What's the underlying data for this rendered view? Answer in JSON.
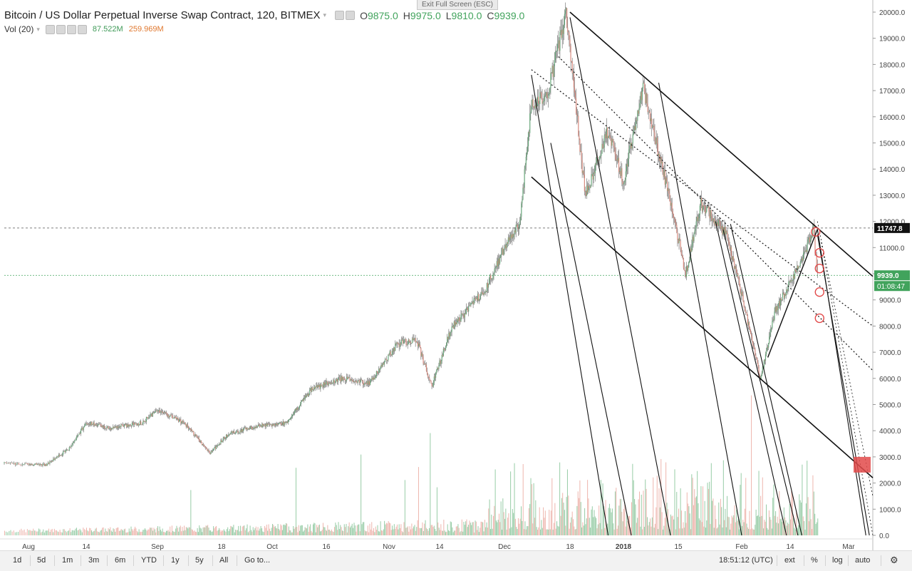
{
  "header": {
    "title": "Bitcoin / US Dollar Perpetual Inverse Swap Contract, 120, BITMEX",
    "ohlc": [
      {
        "k": "O",
        "v": "9875.0"
      },
      {
        "k": "H",
        "v": "9975.0"
      },
      {
        "k": "L",
        "v": "9810.0"
      },
      {
        "k": "C",
        "v": "9939.0"
      }
    ],
    "volume_label": "Vol (20)",
    "volume_value": "87.522M",
    "volume_ma": "259.969M",
    "exit_fullscreen": "Exit Full Screen (ESC)"
  },
  "colors": {
    "up": "#41a35c",
    "down": "#e0786a",
    "trendline": "#111111",
    "marker": "#e24a4a",
    "price_line": "#41a35c",
    "axis_text": "#444444"
  },
  "chart_data": {
    "type": "candlestick",
    "interval": "120",
    "ylim": [
      0,
      20000
    ],
    "yticks": [
      "20000.0",
      "19000.0",
      "18000.0",
      "17000.0",
      "16000.0",
      "15000.0",
      "14000.0",
      "13000.0",
      "12000.0",
      "11000.0",
      "10000.0",
      "9000.0",
      "8000.0",
      "7000.0",
      "6000.0",
      "5000.0",
      "4000.0",
      "3000.0",
      "2000.0",
      "1000.0",
      "0.0"
    ],
    "xticks": [
      "Aug",
      "14",
      "Sep",
      "18",
      "Oct",
      "16",
      "Nov",
      "14",
      "Dec",
      "18",
      "2018",
      "15",
      "Feb",
      "14",
      "Mar"
    ],
    "price_path": [
      {
        "date": "Jul 28",
        "price": 2750
      },
      {
        "date": "Aug 5",
        "price": 2700
      },
      {
        "date": "Aug 10",
        "price": 3300
      },
      {
        "date": "Aug 14",
        "price": 4300
      },
      {
        "date": "Aug 20",
        "price": 4100
      },
      {
        "date": "Aug 28",
        "price": 4300
      },
      {
        "date": "Sep 1",
        "price": 4800
      },
      {
        "date": "Sep 8",
        "price": 4300
      },
      {
        "date": "Sep 15",
        "price": 3150
      },
      {
        "date": "Sep 20",
        "price": 3900
      },
      {
        "date": "Sep 28",
        "price": 4200
      },
      {
        "date": "Oct 5",
        "price": 4300
      },
      {
        "date": "Oct 12",
        "price": 5600
      },
      {
        "date": "Oct 20",
        "price": 6000
      },
      {
        "date": "Oct 27",
        "price": 5800
      },
      {
        "date": "Nov 3",
        "price": 7300
      },
      {
        "date": "Nov 8",
        "price": 7500
      },
      {
        "date": "Nov 12",
        "price": 5700
      },
      {
        "date": "Nov 17",
        "price": 7900
      },
      {
        "date": "Nov 26",
        "price": 9400
      },
      {
        "date": "Dec 1",
        "price": 11000
      },
      {
        "date": "Dec 5",
        "price": 12000
      },
      {
        "date": "Dec 8",
        "price": 16500
      },
      {
        "date": "Dec 12",
        "price": 16800
      },
      {
        "date": "Dec 17",
        "price": 19900
      },
      {
        "date": "Dec 22",
        "price": 13000
      },
      {
        "date": "Dec 28",
        "price": 15500
      },
      {
        "date": "Jan 1",
        "price": 13500
      },
      {
        "date": "Jan 6",
        "price": 17200
      },
      {
        "date": "Jan 11",
        "price": 14000
      },
      {
        "date": "Jan 17",
        "price": 10000
      },
      {
        "date": "Jan 21",
        "price": 12700
      },
      {
        "date": "Jan 28",
        "price": 11500
      },
      {
        "date": "Feb 1",
        "price": 9200
      },
      {
        "date": "Feb 6",
        "price": 6000
      },
      {
        "date": "Feb 10",
        "price": 8600
      },
      {
        "date": "Feb 16",
        "price": 10200
      },
      {
        "date": "Feb 20",
        "price": 11700
      },
      {
        "date": "Feb 21",
        "price": 9939
      }
    ],
    "last_price": "9939.0",
    "countdown": "01:08:47",
    "horizontal_level": "11747.8"
  },
  "bottom_bar": {
    "ranges": [
      "1d",
      "5d",
      "1m",
      "3m",
      "6m",
      "YTD",
      "1y",
      "5y",
      "All"
    ],
    "goto": "Go to...",
    "time": "18:51:12 (UTC)",
    "ext": "ext",
    "percent": "%",
    "log": "log",
    "auto": "auto",
    "settings_icon": "gear-icon"
  }
}
